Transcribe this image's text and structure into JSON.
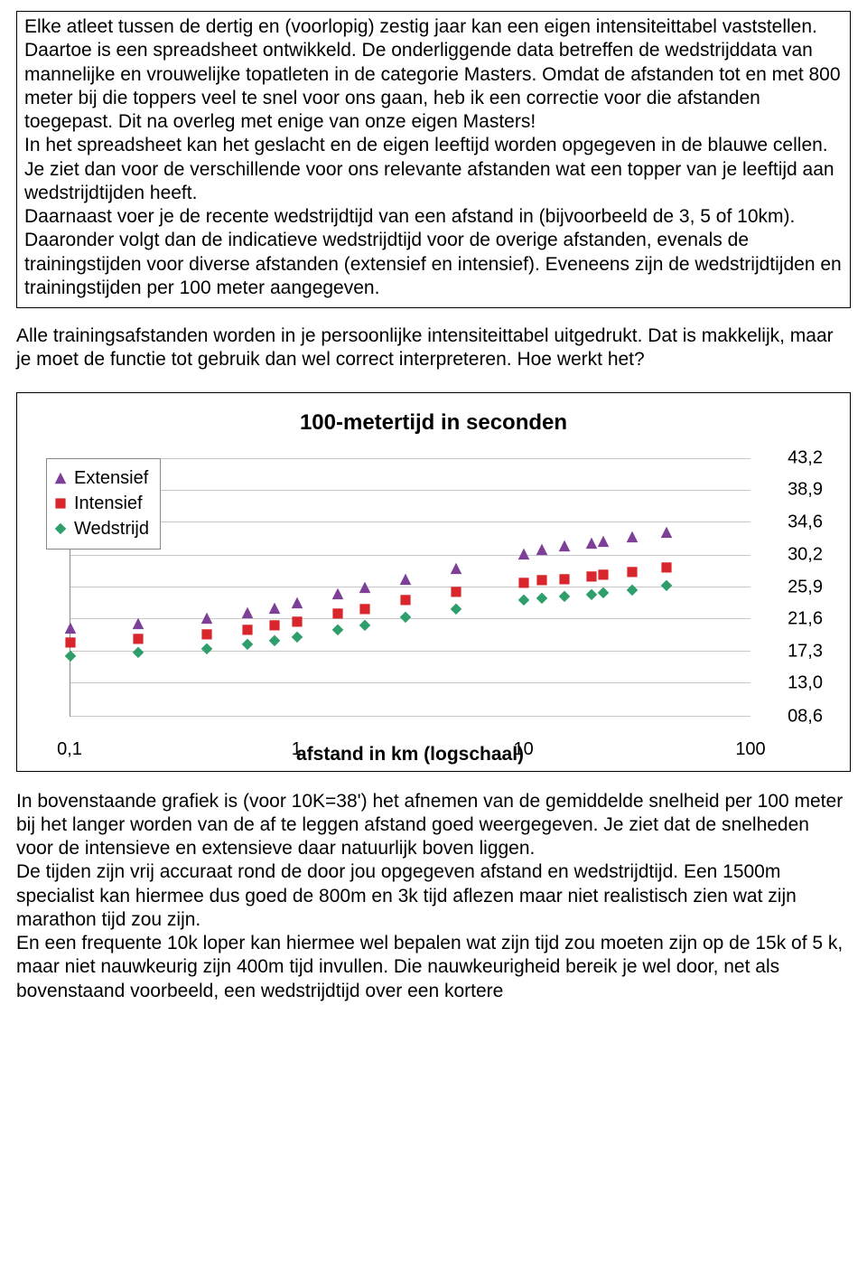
{
  "boxed_text": "Elke atleet tussen de dertig en (voorlopig) zestig jaar kan een eigen intensiteittabel vaststellen. Daartoe is een spreadsheet ontwikkeld. De onderliggende data betreffen de wedstrijddata van mannelijke en  vrouwelijke topatleten in de categorie Masters. Omdat de afstanden tot en met 800 meter bij die toppers veel te snel voor ons gaan, heb ik een correctie voor die afstanden toegepast. Dit na overleg met enige van onze eigen Masters!\nIn het spreadsheet kan het geslacht en de eigen leeftijd worden opgegeven in de blauwe cellen. Je ziet dan voor de verschillende voor ons relevante afstanden wat een topper van je leeftijd aan wedstrijdtijden heeft.\nDaarnaast voer je de recente wedstrijdtijd van een afstand in (bijvoorbeeld de 3, 5 of 10km).\nDaaronder volgt dan de indicatieve wedstrijdtijd voor de overige afstanden, evenals de trainingstijden voor diverse afstanden (extensief en intensief). Eveneens zijn de wedstrijdtijden en trainingstijden per 100 meter aangegeven.",
  "mid_text": "Alle trainingsafstanden worden in je persoonlijke intensiteittabel uitgedrukt. Dat is makkelijk, maar je moet de functie tot gebruik dan wel correct interpreteren. Hoe werkt het?",
  "after_text": "In bovenstaande grafiek is (voor 10K=38') het afnemen van de gemiddelde snelheid per 100 meter bij het langer worden van de af te leggen afstand goed weergegeven. Je ziet dat de snelheden voor de intensieve en extensieve daar natuurlijk boven liggen.\nDe tijden zijn vrij accuraat rond de door jou opgegeven afstand en wedstrijdtijd. Een 1500m specialist kan hiermee dus goed de 800m en 3k tijd aflezen maar niet realistisch zien wat zijn marathon tijd zou zijn.\nEn een frequente 10k loper kan hiermee wel bepalen wat zijn tijd zou moeten zijn op de 15k of 5 k, maar niet nauwkeurig zijn 400m tijd invullen. Die nauwkeurigheid bereik je wel door, net als bovenstaand voorbeeld, een wedstrijdtijd over een kortere",
  "chart": {
    "type": "scatter",
    "title": "100-metertijd in seconden",
    "x_title": "afstand in km (logschaal)",
    "x_log_min": -1,
    "x_log_max": 2,
    "x_ticks": [
      {
        "log": -1,
        "label": "0,1"
      },
      {
        "log": 0,
        "label": "1"
      },
      {
        "log": 1,
        "label": "10"
      },
      {
        "log": 2,
        "label": "100"
      }
    ],
    "y_min": 8.6,
    "y_max": 43.2,
    "y_ticks": [
      {
        "v": 43.2,
        "label": "43,2"
      },
      {
        "v": 38.9,
        "label": "38,9"
      },
      {
        "v": 34.6,
        "label": "34,6"
      },
      {
        "v": 30.2,
        "label": "30,2"
      },
      {
        "v": 25.9,
        "label": "25,9"
      },
      {
        "v": 21.6,
        "label": "21,6"
      },
      {
        "v": 17.3,
        "label": "17,3"
      },
      {
        "v": 13.0,
        "label": "13,0"
      },
      {
        "v": 8.6,
        "label": "08,6"
      }
    ],
    "colors": {
      "extensief": "#7e3f98",
      "intensief": "#d9262c",
      "wedstrijd": "#2e9e6b",
      "grid": "#c8c8c8",
      "axis": "#888888",
      "bg": "#ffffff"
    },
    "legend": [
      {
        "key": "extensief",
        "label": "Extensief",
        "shape": "triangle"
      },
      {
        "key": "intensief",
        "label": "Intensief",
        "shape": "square"
      },
      {
        "key": "wedstrijd",
        "label": "Wedstrijd",
        "shape": "diamond"
      }
    ],
    "series": {
      "extensief": [
        {
          "xlog": -1.0,
          "y": 20.2
        },
        {
          "xlog": -0.7,
          "y": 20.8
        },
        {
          "xlog": -0.4,
          "y": 21.5
        },
        {
          "xlog": -0.22,
          "y": 22.2
        },
        {
          "xlog": -0.1,
          "y": 22.9
        },
        {
          "xlog": 0.0,
          "y": 23.6
        },
        {
          "xlog": 0.18,
          "y": 24.8
        },
        {
          "xlog": 0.3,
          "y": 25.6
        },
        {
          "xlog": 0.48,
          "y": 26.8
        },
        {
          "xlog": 0.7,
          "y": 28.2
        },
        {
          "xlog": 1.0,
          "y": 30.2
        },
        {
          "xlog": 1.08,
          "y": 30.8
        },
        {
          "xlog": 1.18,
          "y": 31.2
        },
        {
          "xlog": 1.3,
          "y": 31.6
        },
        {
          "xlog": 1.35,
          "y": 31.9
        },
        {
          "xlog": 1.48,
          "y": 32.4
        },
        {
          "xlog": 1.63,
          "y": 33.1
        }
      ],
      "intensief": [
        {
          "xlog": -1.0,
          "y": 18.2
        },
        {
          "xlog": -0.7,
          "y": 18.7
        },
        {
          "xlog": -0.4,
          "y": 19.3
        },
        {
          "xlog": -0.22,
          "y": 19.9
        },
        {
          "xlog": -0.1,
          "y": 20.5
        },
        {
          "xlog": 0.0,
          "y": 21.1
        },
        {
          "xlog": 0.18,
          "y": 22.1
        },
        {
          "xlog": 0.3,
          "y": 22.8
        },
        {
          "xlog": 0.48,
          "y": 23.9
        },
        {
          "xlog": 0.7,
          "y": 25.1
        },
        {
          "xlog": 1.0,
          "y": 26.3
        },
        {
          "xlog": 1.08,
          "y": 26.6
        },
        {
          "xlog": 1.18,
          "y": 26.8
        },
        {
          "xlog": 1.3,
          "y": 27.1
        },
        {
          "xlog": 1.35,
          "y": 27.3
        },
        {
          "xlog": 1.48,
          "y": 27.7
        },
        {
          "xlog": 1.63,
          "y": 28.3
        }
      ],
      "wedstrijd": [
        {
          "xlog": -1.0,
          "y": 16.4
        },
        {
          "xlog": -0.7,
          "y": 16.9
        },
        {
          "xlog": -0.4,
          "y": 17.4
        },
        {
          "xlog": -0.22,
          "y": 18.0
        },
        {
          "xlog": -0.1,
          "y": 18.5
        },
        {
          "xlog": 0.0,
          "y": 19.0
        },
        {
          "xlog": 0.18,
          "y": 19.9
        },
        {
          "xlog": 0.3,
          "y": 20.6
        },
        {
          "xlog": 0.48,
          "y": 21.7
        },
        {
          "xlog": 0.7,
          "y": 22.7
        },
        {
          "xlog": 1.0,
          "y": 23.9
        },
        {
          "xlog": 1.08,
          "y": 24.2
        },
        {
          "xlog": 1.18,
          "y": 24.4
        },
        {
          "xlog": 1.3,
          "y": 24.7
        },
        {
          "xlog": 1.35,
          "y": 24.9
        },
        {
          "xlog": 1.48,
          "y": 25.3
        },
        {
          "xlog": 1.63,
          "y": 25.9
        }
      ]
    },
    "marker_size": 14
  }
}
